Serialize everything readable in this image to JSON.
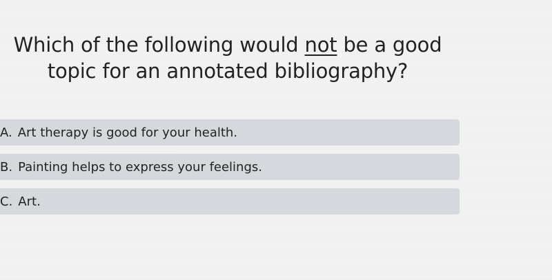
{
  "question": {
    "before": "Which of the following would ",
    "emphasis": "not",
    "after": " be a good topic for an annotated bibliography?"
  },
  "options": [
    {
      "letter": "A.",
      "text": "Art therapy is good for your health."
    },
    {
      "letter": "B.",
      "text": "Painting helps to express your feelings."
    },
    {
      "letter": "C.",
      "text": "Art."
    }
  ],
  "colors": {
    "background": "#f3f3f3",
    "option_background": "#d5d8dd",
    "text": "#222222"
  }
}
